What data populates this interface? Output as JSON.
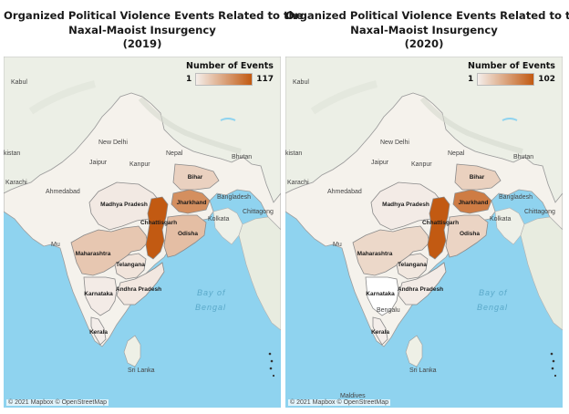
{
  "maps": [
    {
      "title_lines": [
        "Organized Political Violence Events Related to the",
        "Naxal-Maoist Insurgency",
        "(2019)"
      ],
      "legend": {
        "title": "Number of Events",
        "min": "1",
        "max": "117"
      },
      "attribution": "© 2021 Mapbox © OpenStreetMap",
      "labels": {
        "kabul": "Kabul",
        "kistan": "kistan",
        "karachi": "Karachi",
        "newdelhi": "New Delhi",
        "jaipur": "Jaipur",
        "kanpur": "Kanpur",
        "nepal": "Nepal",
        "bhutan": "Bhutan",
        "ahmedabad": "Ahmedabad",
        "bangladesh": "Bangladesh",
        "kolkata": "Kolkata",
        "chittagong": "Chittagong",
        "mumbai": "Mu",
        "bay1": "Bay of",
        "bay2": "Bengal",
        "srilanka": "Sri Lanka",
        "bengaluru": "",
        "maldives": ""
      },
      "regions": [
        {
          "name": "Madhya Pradesh",
          "events": 3
        },
        {
          "name": "Maharashtra",
          "events": 25
        },
        {
          "name": "Chhattisgarh",
          "events": 117
        },
        {
          "name": "Jharkhand",
          "events": 70
        },
        {
          "name": "Bihar",
          "events": 18
        },
        {
          "name": "Odisha",
          "events": 32
        },
        {
          "name": "Telangana",
          "events": 6
        },
        {
          "name": "Andhra Pradesh",
          "events": 4
        },
        {
          "name": "Karnataka",
          "events": 2
        },
        {
          "name": "Kerala",
          "events": 1
        }
      ]
    },
    {
      "title_lines": [
        "Organized Political Violence Events Related to the",
        "Naxal-Maoist Insurgency",
        "(2020)"
      ],
      "legend": {
        "title": "Number of Events",
        "min": "1",
        "max": "102"
      },
      "attribution": "© 2021 Mapbox © OpenStreetMap",
      "labels": {
        "kabul": "Kabul",
        "kistan": "kistan",
        "karachi": "Karachi",
        "newdelhi": "New Delhi",
        "jaipur": "Jaipur",
        "kanpur": "Kanpur",
        "nepal": "Nepal",
        "bhutan": "Bhutan",
        "ahmedabad": "Ahmedabad",
        "bangladesh": "Bangladesh",
        "kolkata": "Kolkata",
        "chittagong": "Chittagong",
        "mumbai": "Mu",
        "bay1": "Bay of",
        "bay2": "Bengal",
        "srilanka": "Sri Lanka",
        "bengaluru": "Bengalu",
        "maldives": "Maldives"
      },
      "regions": [
        {
          "name": "Madhya Pradesh",
          "events": 2
        },
        {
          "name": "Maharashtra",
          "events": 12
        },
        {
          "name": "Chhattisgarh",
          "events": 102
        },
        {
          "name": "Jharkhand",
          "events": 75
        },
        {
          "name": "Bihar",
          "events": 16
        },
        {
          "name": "Odisha",
          "events": 14
        },
        {
          "name": "Telangana",
          "events": 4
        },
        {
          "name": "Andhra Pradesh",
          "events": 2
        },
        {
          "name": "Karnataka",
          "events": 0
        },
        {
          "name": "Kerala",
          "events": 1
        }
      ]
    }
  ]
}
